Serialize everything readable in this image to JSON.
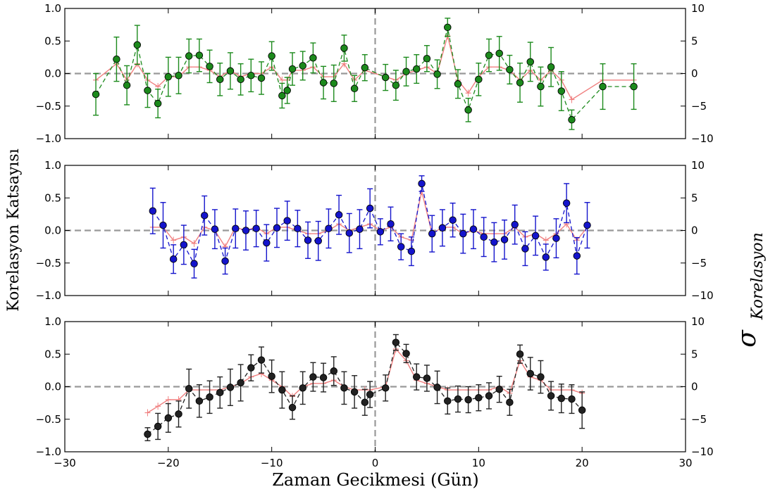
{
  "figure": {
    "xlabel": "Zaman Gecikmesi (Gün)",
    "ylabel": "Korelasyon Katsayısı",
    "right_label_symbol": "σ",
    "right_label_subscript": "Korelasyon"
  },
  "chart_data": [
    {
      "type": "scatter",
      "panel": "top",
      "xlim": [
        -30,
        30
      ],
      "ylim": [
        -1.0,
        1.0
      ],
      "y2lim": [
        -10,
        10
      ],
      "x_ticks": [
        "−30",
        "−20",
        "−10",
        "0",
        "10",
        "20",
        "30"
      ],
      "x_ticks_shown": false,
      "y_ticks": [
        "−1.0",
        "−0.5",
        "0.0",
        "0.5",
        "1.0"
      ],
      "y2_ticks": [
        "−10",
        "−5",
        "0",
        "5",
        "10"
      ],
      "zero_lines": true,
      "colors": {
        "marker": "#1c8a1c",
        "marker_edge": "#000000",
        "errorbar": "#1c8a1c",
        "dashed_line": "#1c8a1c",
        "sigma_line": "#f08080",
        "zero_line": "#999999"
      },
      "series": [
        {
          "x": [
            -27,
            -25,
            -24,
            -23,
            -22,
            -21,
            -20,
            -19,
            -18,
            -17,
            -16,
            -15,
            -14,
            -13,
            -12,
            -11,
            -10,
            -9,
            -8.5,
            -8,
            -7,
            -6,
            -5,
            -4,
            -3,
            -2,
            -1,
            1,
            2,
            3,
            4,
            5,
            6,
            7,
            8,
            9,
            10,
            11,
            12,
            13,
            14,
            15,
            16,
            17,
            18,
            19,
            22,
            25
          ],
          "y": [
            -0.32,
            0.22,
            -0.18,
            0.44,
            -0.26,
            -0.46,
            -0.05,
            -0.03,
            0.27,
            0.28,
            0.11,
            -0.09,
            0.04,
            -0.09,
            -0.03,
            -0.07,
            0.27,
            -0.34,
            -0.26,
            0.07,
            0.12,
            0.24,
            -0.14,
            -0.15,
            0.39,
            -0.23,
            0.09,
            -0.06,
            -0.18,
            0.03,
            0.07,
            0.23,
            -0.01,
            0.71,
            -0.16,
            -0.56,
            -0.09,
            0.28,
            0.31,
            0.06,
            -0.14,
            0.18,
            -0.2,
            0.1,
            -0.27,
            -0.71,
            -0.2,
            -0.2
          ],
          "yerr": [
            0.32,
            0.34,
            0.3,
            0.3,
            0.26,
            0.22,
            0.3,
            0.28,
            0.26,
            0.25,
            0.25,
            0.25,
            0.28,
            0.24,
            0.25,
            0.25,
            0.22,
            0.19,
            0.2,
            0.25,
            0.22,
            0.23,
            0.25,
            0.28,
            0.2,
            0.2,
            0.2,
            0.2,
            0.23,
            0.22,
            0.22,
            0.2,
            0.22,
            0.14,
            0.22,
            0.18,
            0.25,
            0.25,
            0.26,
            0.22,
            0.3,
            0.3,
            0.3,
            0.3,
            0.3,
            0.15,
            0.35,
            0.35
          ],
          "sigma": [
            -1.0,
            1.5,
            -1.0,
            1.5,
            -1.0,
            -2.0,
            -0.5,
            -0.5,
            1.0,
            1.0,
            0.5,
            -0.5,
            0.5,
            -0.5,
            0.0,
            0.0,
            1.0,
            -1.0,
            -1.0,
            0.5,
            0.5,
            1.0,
            -0.5,
            -0.5,
            1.5,
            -1.0,
            0.5,
            -0.5,
            -1.0,
            0.0,
            0.5,
            1.0,
            0.0,
            5.8,
            -1.0,
            -3.0,
            -0.5,
            1.0,
            1.0,
            0.5,
            -1.0,
            0.5,
            -1.0,
            0.5,
            -1.0,
            -4.0,
            -1.0,
            -1.0
          ]
        }
      ]
    },
    {
      "type": "scatter",
      "panel": "middle",
      "xlim": [
        -30,
        30
      ],
      "ylim": [
        -1.0,
        1.0
      ],
      "y2lim": [
        -10,
        10
      ],
      "x_ticks": [
        "−30",
        "−20",
        "−10",
        "0",
        "10",
        "20",
        "30"
      ],
      "x_ticks_shown": false,
      "y_ticks": [
        "−1.0",
        "−0.5",
        "0.0",
        "0.5",
        "1.0"
      ],
      "y2_ticks": [
        "−10",
        "−5",
        "0",
        "5",
        "10"
      ],
      "zero_lines": true,
      "colors": {
        "marker": "#1414cc",
        "marker_edge": "#000000",
        "errorbar": "#1414cc",
        "dashed_line": "#1414cc",
        "sigma_line": "#f08080",
        "zero_line": "#999999"
      },
      "series": [
        {
          "x": [
            -21.5,
            -20.5,
            -19.5,
            -18.5,
            -17.5,
            -16.5,
            -15.5,
            -14.5,
            -13.5,
            -12.5,
            -11.5,
            -10.5,
            -9.5,
            -8.5,
            -7.5,
            -6.5,
            -5.5,
            -4.5,
            -3.5,
            -2.5,
            -1.5,
            -0.5,
            0.5,
            1.5,
            2.5,
            3.5,
            4.5,
            5.5,
            6.5,
            7.5,
            8.5,
            9.5,
            10.5,
            11.5,
            12.5,
            13.5,
            14.5,
            15.5,
            16.5,
            17.5,
            18.5,
            19.5,
            20.5
          ],
          "y": [
            0.3,
            0.08,
            -0.44,
            -0.22,
            -0.51,
            0.23,
            0.02,
            -0.47,
            0.03,
            0.0,
            0.03,
            -0.19,
            0.04,
            0.15,
            0.03,
            -0.15,
            -0.16,
            0.03,
            0.24,
            -0.04,
            0.02,
            0.34,
            -0.02,
            0.1,
            -0.25,
            -0.32,
            0.72,
            -0.05,
            0.04,
            0.16,
            -0.05,
            0.02,
            -0.1,
            -0.18,
            -0.14,
            0.09,
            -0.28,
            -0.08,
            -0.41,
            -0.12,
            0.42,
            -0.39,
            0.08
          ],
          "yerr": [
            0.35,
            0.35,
            0.22,
            0.3,
            0.22,
            0.3,
            0.3,
            0.2,
            0.3,
            0.3,
            0.28,
            0.28,
            0.3,
            0.3,
            0.28,
            0.28,
            0.3,
            0.3,
            0.3,
            0.3,
            0.3,
            0.3,
            0.2,
            0.26,
            0.2,
            0.22,
            0.12,
            0.28,
            0.28,
            0.26,
            0.3,
            0.3,
            0.3,
            0.3,
            0.3,
            0.3,
            0.26,
            0.3,
            0.2,
            0.3,
            0.3,
            0.28,
            0.35
          ],
          "sigma": [
            0.5,
            0.5,
            -1.5,
            -1.0,
            -2.0,
            0.5,
            0.0,
            -2.5,
            0.5,
            0.0,
            0.5,
            -0.5,
            0.5,
            0.5,
            0.0,
            -0.5,
            -0.5,
            0.0,
            1.0,
            0.0,
            0.5,
            1.0,
            0.0,
            0.5,
            -1.0,
            -1.5,
            6.0,
            -0.5,
            0.5,
            0.5,
            -0.5,
            0.0,
            -0.5,
            -0.5,
            -0.5,
            0.5,
            -1.0,
            -0.5,
            -1.5,
            -0.5,
            1.0,
            -1.5,
            0.5
          ]
        }
      ]
    },
    {
      "type": "scatter",
      "panel": "bottom",
      "xlim": [
        -30,
        30
      ],
      "ylim": [
        -1.0,
        1.0
      ],
      "y2lim": [
        -10,
        10
      ],
      "x_ticks": [
        "−30",
        "−20",
        "−10",
        "0",
        "10",
        "20",
        "30"
      ],
      "x_ticks_shown": true,
      "y_ticks": [
        "−1.0",
        "−0.5",
        "0.0",
        "0.5",
        "1.0"
      ],
      "y2_ticks": [
        "−10",
        "−5",
        "0",
        "5",
        "10"
      ],
      "zero_lines": true,
      "colors": {
        "marker": "#222222",
        "marker_edge": "#000000",
        "errorbar": "#222222",
        "dashed_line": "#222222",
        "sigma_line": "#f08080",
        "zero_line": "#999999"
      },
      "series": [
        {
          "x": [
            -22,
            -21,
            -20,
            -19,
            -18,
            -17,
            -16,
            -15,
            -14,
            -13,
            -12,
            -11,
            -10,
            -9,
            -8,
            -7,
            -6,
            -5,
            -4,
            -3,
            -2,
            -1,
            -0.5,
            1,
            2,
            3,
            4,
            5,
            6,
            7,
            8,
            9,
            10,
            11,
            12,
            13,
            14,
            15,
            16,
            17,
            18,
            19,
            20
          ],
          "y": [
            -0.73,
            -0.61,
            -0.48,
            -0.42,
            -0.03,
            -0.22,
            -0.16,
            -0.09,
            -0.01,
            0.06,
            0.29,
            0.41,
            0.16,
            -0.05,
            -0.32,
            -0.02,
            0.15,
            0.14,
            0.24,
            -0.02,
            -0.08,
            -0.24,
            -0.12,
            -0.02,
            0.68,
            0.51,
            0.15,
            0.13,
            -0.01,
            -0.22,
            -0.19,
            -0.2,
            -0.17,
            -0.14,
            -0.04,
            -0.24,
            0.5,
            0.2,
            0.15,
            -0.14,
            -0.18,
            -0.19,
            -0.36
          ],
          "yerr": [
            0.1,
            0.2,
            0.22,
            0.2,
            0.3,
            0.25,
            0.25,
            0.24,
            0.28,
            0.28,
            0.2,
            0.2,
            0.25,
            0.28,
            0.18,
            0.25,
            0.22,
            0.22,
            0.22,
            0.25,
            0.25,
            0.2,
            0.2,
            0.2,
            0.12,
            0.14,
            0.2,
            0.2,
            0.25,
            0.2,
            0.2,
            0.2,
            0.2,
            0.2,
            0.2,
            0.2,
            0.14,
            0.25,
            0.25,
            0.22,
            0.22,
            0.22,
            0.28
          ],
          "sigma": [
            -4.0,
            -3.0,
            -2.0,
            -2.0,
            -0.5,
            -0.5,
            -0.5,
            -0.5,
            0.0,
            0.5,
            1.5,
            2.0,
            1.0,
            0.0,
            -1.5,
            0.0,
            0.5,
            0.5,
            1.0,
            0.0,
            -0.5,
            -0.5,
            -0.5,
            0.0,
            5.8,
            4.0,
            1.0,
            0.5,
            0.0,
            -0.5,
            -0.5,
            -0.5,
            -0.5,
            -0.5,
            0.0,
            -1.0,
            4.0,
            1.5,
            1.0,
            -0.5,
            -0.5,
            -0.5,
            -1.0
          ]
        }
      ]
    }
  ]
}
